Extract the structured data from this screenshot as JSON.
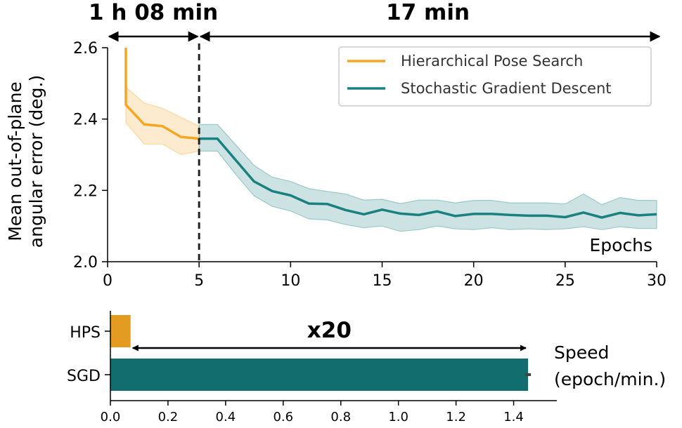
{
  "chart_data": [
    {
      "type": "line",
      "ylabel_line1": "Mean out-of-plane",
      "ylabel_line2": "angular error (deg.)",
      "xlabel": "Epochs",
      "xlim": [
        0,
        30
      ],
      "ylim": [
        2.0,
        2.6
      ],
      "x_ticks": [
        0,
        5,
        10,
        15,
        20,
        25,
        30
      ],
      "y_ticks": [
        2.0,
        2.2,
        2.4,
        2.6
      ],
      "grid": false,
      "legend_position": "top-right",
      "switch_epoch": 5,
      "time_annotations": [
        {
          "label": "1 h 08 min",
          "from": 0,
          "to": 5
        },
        {
          "label": "17 min",
          "from": 5,
          "to": 30
        }
      ],
      "series": [
        {
          "name": "Hierarchical Pose Search",
          "color": "#F5A623",
          "x": [
            1,
            1,
            2,
            3,
            4,
            5
          ],
          "y": [
            2.6,
            2.44,
            2.385,
            2.38,
            2.35,
            2.345
          ],
          "lower": [
            2.6,
            2.39,
            2.33,
            2.33,
            2.3,
            2.31
          ],
          "upper": [
            2.6,
            2.49,
            2.445,
            2.43,
            2.405,
            2.38
          ]
        },
        {
          "name": "Stochastic Gradient Descent",
          "color": "#1A8080",
          "x": [
            5,
            6,
            7,
            8,
            9,
            10,
            11,
            12,
            13,
            14,
            15,
            16,
            17,
            18,
            19,
            20,
            21,
            22,
            23,
            24,
            25,
            26,
            27,
            28,
            29,
            30
          ],
          "y": [
            2.345,
            2.345,
            2.285,
            2.225,
            2.198,
            2.186,
            2.163,
            2.162,
            2.145,
            2.133,
            2.146,
            2.135,
            2.131,
            2.141,
            2.128,
            2.134,
            2.134,
            2.131,
            2.129,
            2.129,
            2.125,
            2.138,
            2.124,
            2.137,
            2.13,
            2.133
          ],
          "lower": [
            2.31,
            2.31,
            2.245,
            2.185,
            2.155,
            2.142,
            2.12,
            2.117,
            2.104,
            2.095,
            2.1,
            2.085,
            2.09,
            2.1,
            2.092,
            2.09,
            2.095,
            2.09,
            2.092,
            2.09,
            2.092,
            2.098,
            2.09,
            2.098,
            2.093,
            2.093
          ],
          "upper": [
            2.385,
            2.385,
            2.328,
            2.27,
            2.237,
            2.225,
            2.205,
            2.197,
            2.19,
            2.173,
            2.175,
            2.163,
            2.173,
            2.173,
            2.165,
            2.172,
            2.172,
            2.165,
            2.165,
            2.165,
            2.162,
            2.19,
            2.16,
            2.18,
            2.172,
            2.172
          ]
        }
      ]
    },
    {
      "type": "bar",
      "orientation": "horizontal",
      "categories": [
        "HPS",
        "SGD"
      ],
      "values": [
        0.07,
        1.45
      ],
      "error": [
        0,
        0.01
      ],
      "colors": [
        "#E39B22",
        "#126E6E"
      ],
      "xlim": [
        0,
        1.55
      ],
      "x_ticks": [
        "0.0",
        "0.2",
        "0.4",
        "0.6",
        "0.8",
        "1.0",
        "1.2",
        "1.4"
      ],
      "xlabel_line1": "Speed",
      "xlabel_line2": "(epoch/min.)",
      "annotation": "x20"
    }
  ]
}
